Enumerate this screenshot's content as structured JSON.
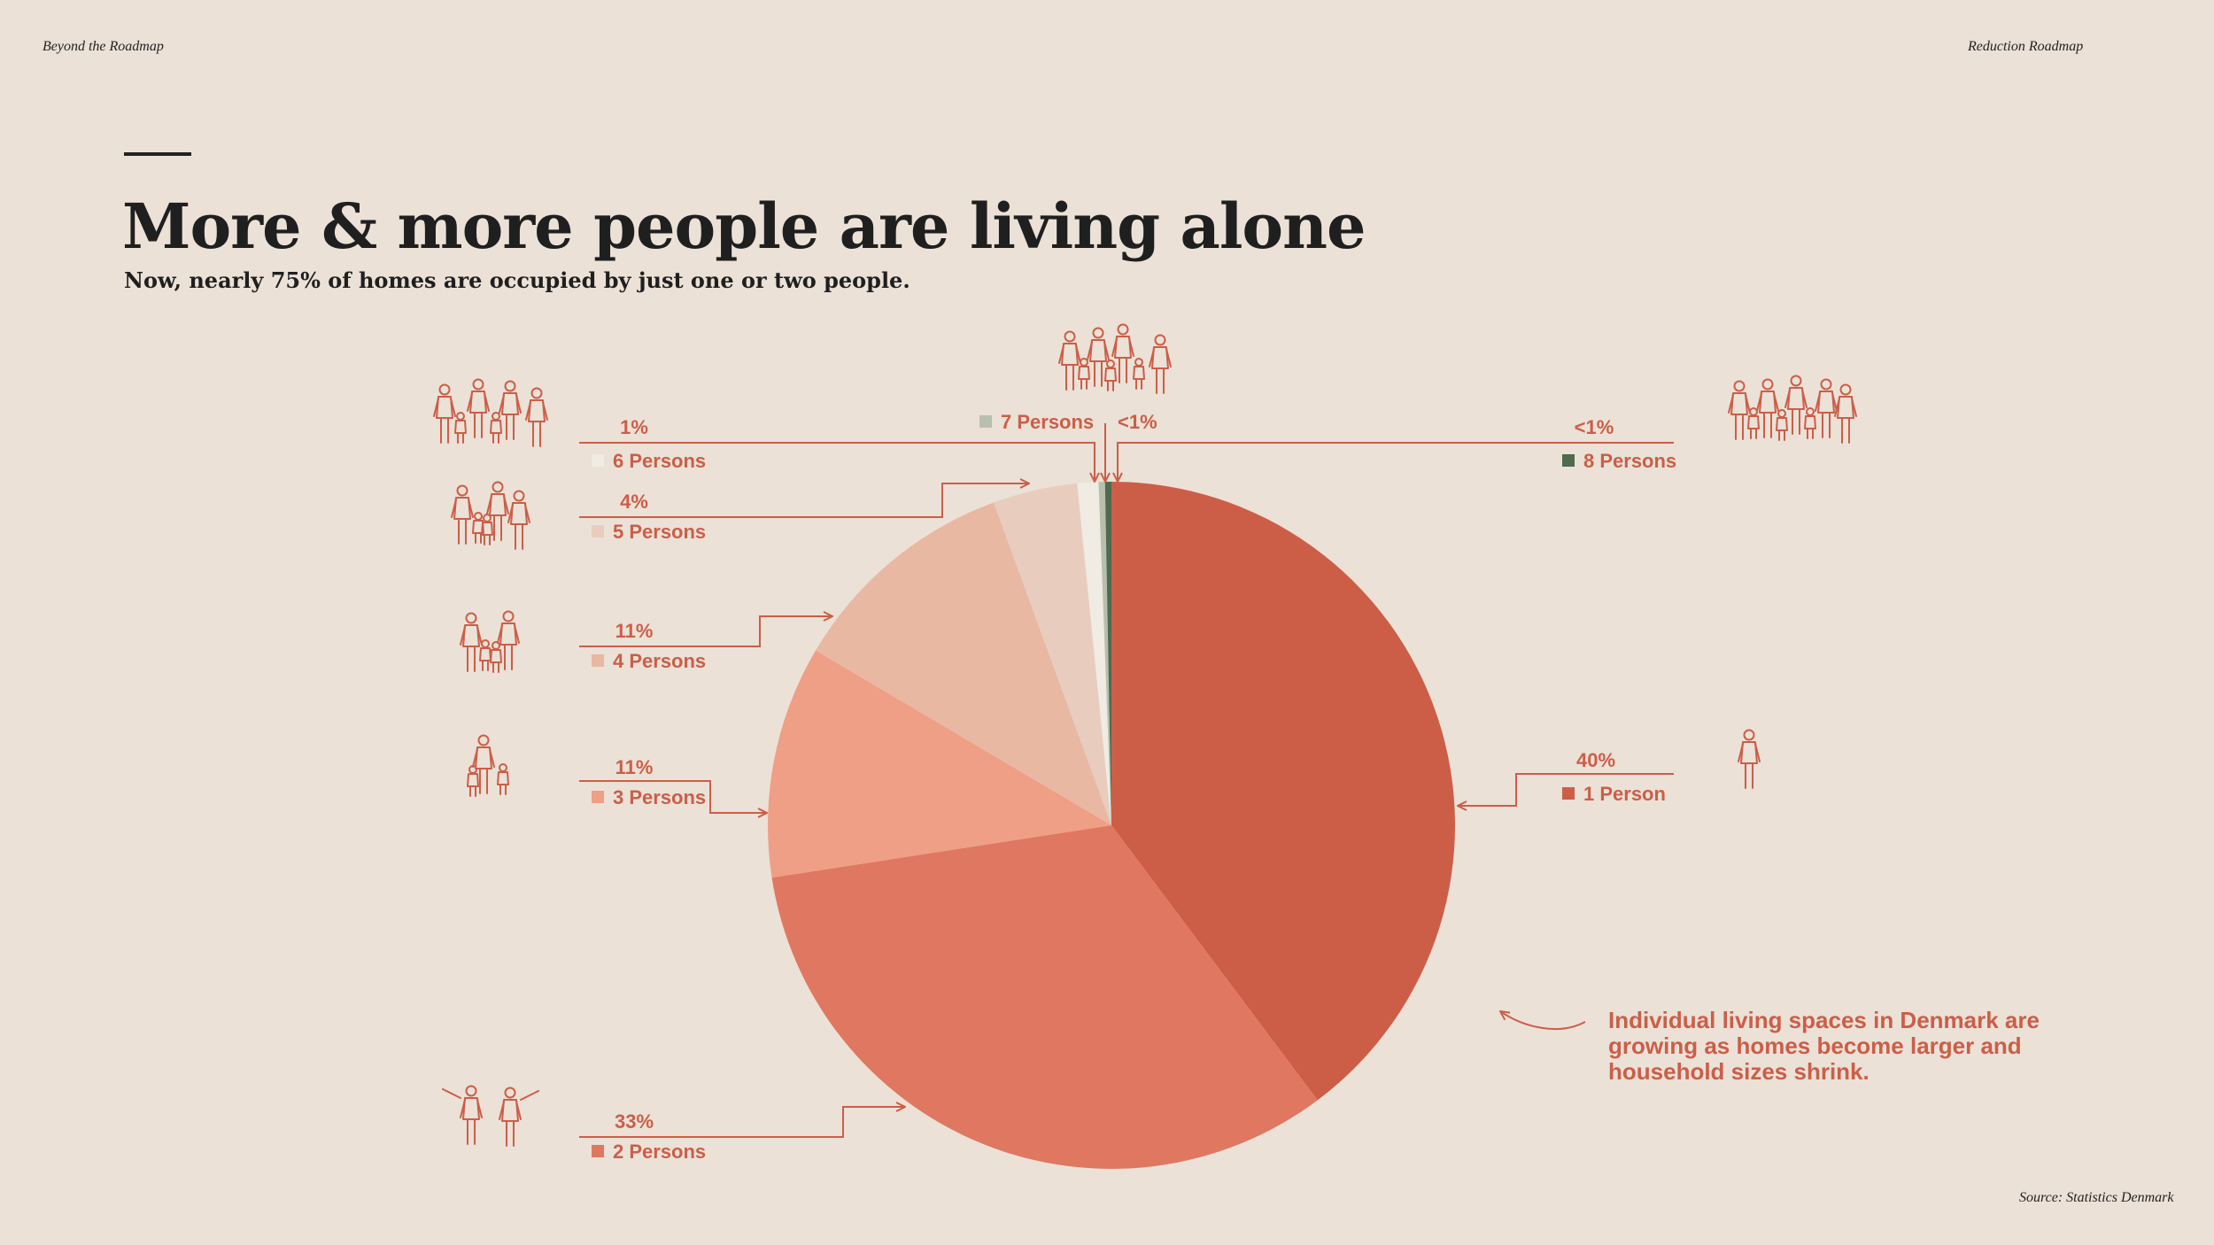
{
  "header": {
    "left": "Beyond the Roadmap",
    "right": "Reduction Roadmap"
  },
  "title": "More & more people are living alone",
  "subtitle": "Now, nearly 75% of homes are occupied by just one or two people.",
  "note": "Individual living spaces in Denmark are growing as homes become larger and household sizes shrink.",
  "source": "Source: Statistics Denmark",
  "colors": {
    "background": "#ebe1d7",
    "accent": "#cc5e48",
    "text": "#1f1f1f"
  },
  "chart_data": {
    "type": "pie",
    "start": "12 o'clock",
    "direction": "clockwise",
    "slices": [
      {
        "label": "1 Person",
        "pct_label": "40%",
        "value": 40,
        "color": "#cc5e48",
        "icon": "single-person-icon"
      },
      {
        "label": "2 Persons",
        "pct_label": "33%",
        "value": 33,
        "color": "#e07761",
        "icon": "couple-icon"
      },
      {
        "label": "3 Persons",
        "pct_label": "11%",
        "value": 11,
        "color": "#ee9f86",
        "icon": "family-of-three-icon"
      },
      {
        "label": "4 Persons",
        "pct_label": "11%",
        "value": 11,
        "color": "#e9b8a2",
        "icon": "family-of-four-icon"
      },
      {
        "label": "5 Persons",
        "pct_label": "4%",
        "value": 4,
        "color": "#e8cdbe",
        "icon": "family-of-five-icon"
      },
      {
        "label": "6 Persons",
        "pct_label": "1%",
        "value": 1,
        "color": "#f0ebe3",
        "icon": "family-of-six-icon"
      },
      {
        "label": "7 Persons",
        "pct_label": "<1%",
        "value": 0.3,
        "color": "#b9bfad",
        "icon": "family-of-seven-icon"
      },
      {
        "label": "8 Persons",
        "pct_label": "<1%",
        "value": 0.3,
        "color": "#4f6a4d",
        "icon": "family-of-eight-icon"
      }
    ]
  }
}
